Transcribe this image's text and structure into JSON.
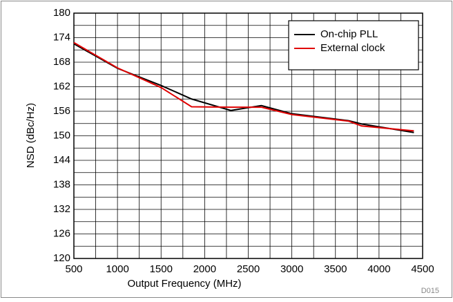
{
  "chart_data": {
    "type": "line",
    "x_label": "Output Frequency (MHz)",
    "y_label": "NSD (dBc/Hz)",
    "annotation": "D015",
    "xlim": [
      500,
      4500
    ],
    "xticks": [
      500,
      1000,
      1500,
      2000,
      2500,
      3000,
      3500,
      4000,
      4500
    ],
    "xminorticks": [
      750,
      1250,
      1750,
      2250,
      2750,
      3250,
      3750,
      4250
    ],
    "ylim": [
      120,
      180
    ],
    "yticks": [
      120,
      126,
      132,
      138,
      144,
      150,
      156,
      162,
      168,
      174,
      180
    ],
    "yminorticks": [
      123,
      129,
      135,
      141,
      147,
      153,
      159,
      165,
      171,
      177
    ],
    "grid": true,
    "legend": "upper right",
    "series": [
      {
        "name": "On-chip PLL",
        "color": "#000000",
        "x": [
          500,
          1000,
          1500,
          1850,
          2300,
          2650,
          3000,
          3650,
          3800,
          4400
        ],
        "values": [
          172.5,
          166.5,
          162.3,
          159,
          156.2,
          157.4,
          155.4,
          153.7,
          152.9,
          150.8
        ]
      },
      {
        "name": "External clock",
        "color": "#e00000",
        "x": [
          500,
          1000,
          1500,
          1850,
          2300,
          2650,
          3000,
          3650,
          3800,
          4400
        ],
        "values": [
          172.8,
          166.6,
          161.8,
          157.1,
          157,
          157,
          155.2,
          153.6,
          152.4,
          151.2
        ]
      }
    ]
  }
}
